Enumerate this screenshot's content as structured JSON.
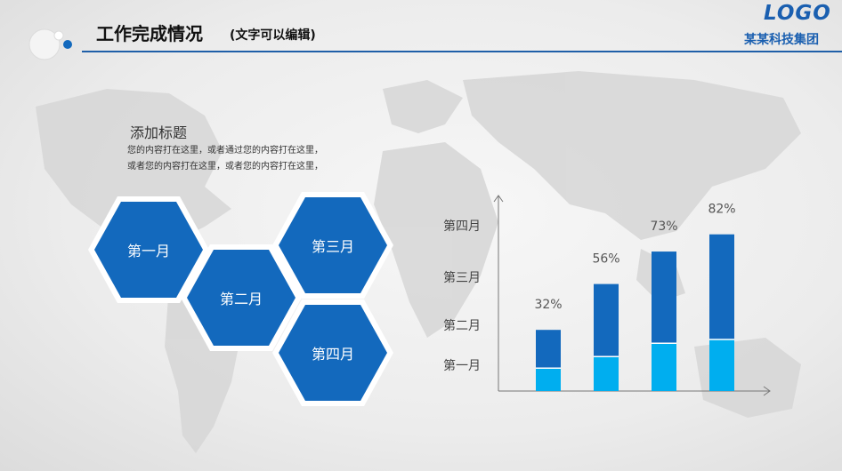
{
  "header": {
    "title": "工作完成情况",
    "title_note": "(文字可以编辑)",
    "logo_text": "LOGO",
    "logo_company": "某某科技集团"
  },
  "content": {
    "sub_title": "添加标题",
    "desc_line_1": "您的内容打在这里，或者通过您的内容打在这里，",
    "desc_line_2": "或者您的内容打在这里，或者您的内容打在这里，"
  },
  "hexagons": [
    {
      "label": "第一月"
    },
    {
      "label": "第二月"
    },
    {
      "label": "第三月"
    },
    {
      "label": "第四月"
    }
  ],
  "colors": {
    "primary_blue": "#1369bd",
    "light_blue": "#00aeef",
    "header_rule": "#1f5fa8"
  },
  "chart_data": {
    "type": "bar",
    "stacked": true,
    "y_category_labels": [
      "第一月",
      "第二月",
      "第三月",
      "第四月"
    ],
    "categories": [
      "",
      "",
      "",
      ""
    ],
    "data_labels": [
      "32%",
      "56%",
      "73%",
      "82%"
    ],
    "totals": [
      32,
      56,
      73,
      82
    ],
    "lower_segment": [
      12,
      18,
      25,
      27
    ],
    "ylim": [
      0,
      100
    ],
    "xlabel": "",
    "ylabel": "",
    "legend": "none",
    "grid": false
  }
}
